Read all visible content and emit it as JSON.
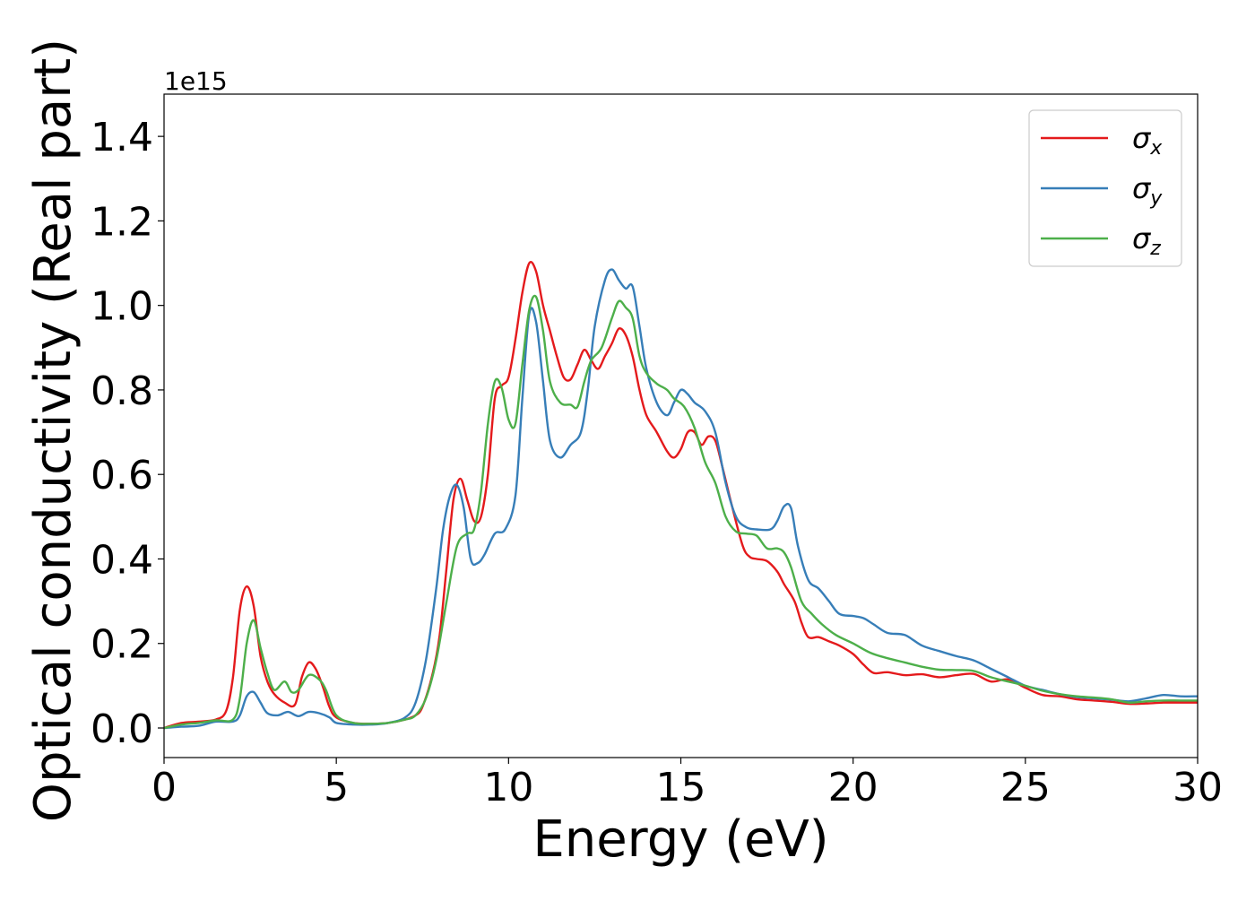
{
  "chart_data": {
    "type": "line",
    "xlabel": "Energy (eV)",
    "ylabel": "Optical conductivity (Real part)",
    "offset_text": "1e15",
    "xlim": [
      0,
      30
    ],
    "ylim": [
      -0.07,
      1.5
    ],
    "xticks": [
      0,
      5,
      10,
      15,
      20,
      25,
      30
    ],
    "yticks": [
      0.0,
      0.2,
      0.4,
      0.6,
      0.8,
      1.0,
      1.2,
      1.4
    ],
    "xtick_labels": [
      "0",
      "5",
      "10",
      "15",
      "20",
      "25",
      "30"
    ],
    "ytick_labels": [
      "0.0",
      "0.2",
      "0.4",
      "0.6",
      "0.8",
      "1.0",
      "1.2",
      "1.4"
    ],
    "grid": false,
    "legend_position": "top-right",
    "series": [
      {
        "name": "σx",
        "symbol": "σ",
        "subscript": "x",
        "color": "#e41a1c",
        "points": [
          [
            0,
            0.0
          ],
          [
            0.5,
            0.012
          ],
          [
            1.0,
            0.015
          ],
          [
            1.5,
            0.02
          ],
          [
            1.8,
            0.04
          ],
          [
            2.0,
            0.12
          ],
          [
            2.2,
            0.28
          ],
          [
            2.4,
            0.335
          ],
          [
            2.6,
            0.29
          ],
          [
            2.8,
            0.17
          ],
          [
            3.0,
            0.11
          ],
          [
            3.2,
            0.08
          ],
          [
            3.5,
            0.06
          ],
          [
            3.8,
            0.055
          ],
          [
            4.0,
            0.12
          ],
          [
            4.2,
            0.155
          ],
          [
            4.4,
            0.14
          ],
          [
            4.6,
            0.1
          ],
          [
            4.8,
            0.05
          ],
          [
            5.0,
            0.025
          ],
          [
            5.5,
            0.012
          ],
          [
            6.0,
            0.01
          ],
          [
            6.5,
            0.012
          ],
          [
            7.0,
            0.02
          ],
          [
            7.3,
            0.03
          ],
          [
            7.5,
            0.05
          ],
          [
            7.8,
            0.13
          ],
          [
            8.0,
            0.22
          ],
          [
            8.2,
            0.38
          ],
          [
            8.4,
            0.54
          ],
          [
            8.6,
            0.59
          ],
          [
            8.8,
            0.54
          ],
          [
            9.0,
            0.49
          ],
          [
            9.2,
            0.5
          ],
          [
            9.4,
            0.6
          ],
          [
            9.6,
            0.78
          ],
          [
            9.8,
            0.81
          ],
          [
            10.0,
            0.83
          ],
          [
            10.2,
            0.92
          ],
          [
            10.4,
            1.03
          ],
          [
            10.6,
            1.1
          ],
          [
            10.8,
            1.08
          ],
          [
            11.0,
            1.0
          ],
          [
            11.2,
            0.94
          ],
          [
            11.4,
            0.88
          ],
          [
            11.6,
            0.83
          ],
          [
            11.8,
            0.825
          ],
          [
            12.0,
            0.86
          ],
          [
            12.2,
            0.895
          ],
          [
            12.4,
            0.87
          ],
          [
            12.6,
            0.85
          ],
          [
            12.8,
            0.88
          ],
          [
            13.0,
            0.91
          ],
          [
            13.2,
            0.945
          ],
          [
            13.4,
            0.93
          ],
          [
            13.6,
            0.88
          ],
          [
            13.8,
            0.8
          ],
          [
            14.0,
            0.74
          ],
          [
            14.3,
            0.7
          ],
          [
            14.6,
            0.655
          ],
          [
            14.8,
            0.64
          ],
          [
            15.0,
            0.66
          ],
          [
            15.2,
            0.7
          ],
          [
            15.4,
            0.7
          ],
          [
            15.6,
            0.67
          ],
          [
            15.8,
            0.69
          ],
          [
            16.0,
            0.68
          ],
          [
            16.2,
            0.62
          ],
          [
            16.5,
            0.52
          ],
          [
            16.8,
            0.43
          ],
          [
            17.0,
            0.405
          ],
          [
            17.2,
            0.4
          ],
          [
            17.5,
            0.395
          ],
          [
            17.8,
            0.37
          ],
          [
            18.0,
            0.34
          ],
          [
            18.3,
            0.3
          ],
          [
            18.5,
            0.25
          ],
          [
            18.7,
            0.215
          ],
          [
            19.0,
            0.215
          ],
          [
            19.3,
            0.205
          ],
          [
            19.6,
            0.195
          ],
          [
            20.0,
            0.175
          ],
          [
            20.3,
            0.15
          ],
          [
            20.6,
            0.13
          ],
          [
            21.0,
            0.132
          ],
          [
            21.5,
            0.125
          ],
          [
            22.0,
            0.127
          ],
          [
            22.5,
            0.12
          ],
          [
            23.0,
            0.125
          ],
          [
            23.5,
            0.128
          ],
          [
            24.0,
            0.11
          ],
          [
            24.5,
            0.115
          ],
          [
            25.0,
            0.095
          ],
          [
            25.5,
            0.078
          ],
          [
            26.0,
            0.075
          ],
          [
            26.5,
            0.068
          ],
          [
            27.0,
            0.065
          ],
          [
            27.5,
            0.062
          ],
          [
            28.0,
            0.057
          ],
          [
            28.5,
            0.058
          ],
          [
            29.0,
            0.06
          ],
          [
            29.5,
            0.06
          ],
          [
            30.0,
            0.06
          ]
        ]
      },
      {
        "name": "σy",
        "symbol": "σ",
        "subscript": "y",
        "color": "#377eb8",
        "points": [
          [
            0,
            0.0
          ],
          [
            0.5,
            0.003
          ],
          [
            1.0,
            0.005
          ],
          [
            1.5,
            0.015
          ],
          [
            2.0,
            0.015
          ],
          [
            2.2,
            0.03
          ],
          [
            2.4,
            0.075
          ],
          [
            2.6,
            0.085
          ],
          [
            2.8,
            0.06
          ],
          [
            3.0,
            0.035
          ],
          [
            3.3,
            0.03
          ],
          [
            3.6,
            0.038
          ],
          [
            3.9,
            0.028
          ],
          [
            4.2,
            0.038
          ],
          [
            4.5,
            0.035
          ],
          [
            4.8,
            0.025
          ],
          [
            5.0,
            0.012
          ],
          [
            5.5,
            0.008
          ],
          [
            6.0,
            0.008
          ],
          [
            6.5,
            0.012
          ],
          [
            7.0,
            0.025
          ],
          [
            7.3,
            0.06
          ],
          [
            7.6,
            0.16
          ],
          [
            7.9,
            0.33
          ],
          [
            8.1,
            0.47
          ],
          [
            8.3,
            0.55
          ],
          [
            8.5,
            0.575
          ],
          [
            8.7,
            0.52
          ],
          [
            8.9,
            0.4
          ],
          [
            9.1,
            0.39
          ],
          [
            9.3,
            0.41
          ],
          [
            9.6,
            0.46
          ],
          [
            9.9,
            0.47
          ],
          [
            10.2,
            0.55
          ],
          [
            10.4,
            0.78
          ],
          [
            10.6,
            0.98
          ],
          [
            10.8,
            0.96
          ],
          [
            11.0,
            0.82
          ],
          [
            11.2,
            0.68
          ],
          [
            11.5,
            0.64
          ],
          [
            11.8,
            0.67
          ],
          [
            12.1,
            0.7
          ],
          [
            12.3,
            0.8
          ],
          [
            12.5,
            0.95
          ],
          [
            12.8,
            1.06
          ],
          [
            13.0,
            1.085
          ],
          [
            13.2,
            1.06
          ],
          [
            13.4,
            1.04
          ],
          [
            13.6,
            1.045
          ],
          [
            13.8,
            0.95
          ],
          [
            14.0,
            0.85
          ],
          [
            14.3,
            0.77
          ],
          [
            14.6,
            0.74
          ],
          [
            14.8,
            0.77
          ],
          [
            15.0,
            0.8
          ],
          [
            15.2,
            0.79
          ],
          [
            15.4,
            0.77
          ],
          [
            15.7,
            0.75
          ],
          [
            16.0,
            0.7
          ],
          [
            16.3,
            0.58
          ],
          [
            16.6,
            0.5
          ],
          [
            16.9,
            0.475
          ],
          [
            17.2,
            0.47
          ],
          [
            17.6,
            0.47
          ],
          [
            17.8,
            0.49
          ],
          [
            18.0,
            0.525
          ],
          [
            18.2,
            0.52
          ],
          [
            18.4,
            0.43
          ],
          [
            18.7,
            0.35
          ],
          [
            19.0,
            0.33
          ],
          [
            19.3,
            0.3
          ],
          [
            19.6,
            0.27
          ],
          [
            20.0,
            0.265
          ],
          [
            20.3,
            0.26
          ],
          [
            20.6,
            0.245
          ],
          [
            21.0,
            0.225
          ],
          [
            21.5,
            0.22
          ],
          [
            22.0,
            0.195
          ],
          [
            22.5,
            0.182
          ],
          [
            23.0,
            0.17
          ],
          [
            23.5,
            0.16
          ],
          [
            24.0,
            0.14
          ],
          [
            24.5,
            0.12
          ],
          [
            25.0,
            0.1
          ],
          [
            25.5,
            0.09
          ],
          [
            26.0,
            0.08
          ],
          [
            26.5,
            0.073
          ],
          [
            27.0,
            0.07
          ],
          [
            27.5,
            0.067
          ],
          [
            28.0,
            0.063
          ],
          [
            28.5,
            0.07
          ],
          [
            29.0,
            0.078
          ],
          [
            29.5,
            0.075
          ],
          [
            30.0,
            0.075
          ]
        ]
      },
      {
        "name": "σz",
        "symbol": "σ",
        "subscript": "z",
        "color": "#4daf4a",
        "points": [
          [
            0,
            0.0
          ],
          [
            0.5,
            0.008
          ],
          [
            1.0,
            0.012
          ],
          [
            1.5,
            0.018
          ],
          [
            2.0,
            0.02
          ],
          [
            2.2,
            0.07
          ],
          [
            2.4,
            0.2
          ],
          [
            2.6,
            0.255
          ],
          [
            2.8,
            0.19
          ],
          [
            3.0,
            0.13
          ],
          [
            3.2,
            0.09
          ],
          [
            3.5,
            0.11
          ],
          [
            3.7,
            0.085
          ],
          [
            3.9,
            0.09
          ],
          [
            4.2,
            0.125
          ],
          [
            4.5,
            0.115
          ],
          [
            4.7,
            0.09
          ],
          [
            5.0,
            0.03
          ],
          [
            5.5,
            0.012
          ],
          [
            6.0,
            0.01
          ],
          [
            6.5,
            0.012
          ],
          [
            7.0,
            0.02
          ],
          [
            7.3,
            0.03
          ],
          [
            7.6,
            0.07
          ],
          [
            7.9,
            0.16
          ],
          [
            8.2,
            0.3
          ],
          [
            8.5,
            0.43
          ],
          [
            8.8,
            0.46
          ],
          [
            9.0,
            0.47
          ],
          [
            9.2,
            0.56
          ],
          [
            9.4,
            0.72
          ],
          [
            9.6,
            0.82
          ],
          [
            9.8,
            0.805
          ],
          [
            10.0,
            0.73
          ],
          [
            10.2,
            0.72
          ],
          [
            10.4,
            0.86
          ],
          [
            10.6,
            0.99
          ],
          [
            10.8,
            1.02
          ],
          [
            11.0,
            0.94
          ],
          [
            11.2,
            0.82
          ],
          [
            11.5,
            0.77
          ],
          [
            11.8,
            0.765
          ],
          [
            12.0,
            0.76
          ],
          [
            12.2,
            0.82
          ],
          [
            12.4,
            0.87
          ],
          [
            12.7,
            0.9
          ],
          [
            13.0,
            0.97
          ],
          [
            13.2,
            1.01
          ],
          [
            13.4,
            0.995
          ],
          [
            13.6,
            0.97
          ],
          [
            13.8,
            0.88
          ],
          [
            14.0,
            0.84
          ],
          [
            14.3,
            0.815
          ],
          [
            14.6,
            0.8
          ],
          [
            14.8,
            0.78
          ],
          [
            15.1,
            0.76
          ],
          [
            15.4,
            0.71
          ],
          [
            15.7,
            0.63
          ],
          [
            16.0,
            0.58
          ],
          [
            16.3,
            0.5
          ],
          [
            16.6,
            0.465
          ],
          [
            16.9,
            0.46
          ],
          [
            17.2,
            0.455
          ],
          [
            17.5,
            0.425
          ],
          [
            17.8,
            0.425
          ],
          [
            18.0,
            0.415
          ],
          [
            18.2,
            0.38
          ],
          [
            18.5,
            0.3
          ],
          [
            18.8,
            0.27
          ],
          [
            19.1,
            0.245
          ],
          [
            19.5,
            0.22
          ],
          [
            20.0,
            0.2
          ],
          [
            20.5,
            0.178
          ],
          [
            21.0,
            0.165
          ],
          [
            21.5,
            0.155
          ],
          [
            22.0,
            0.145
          ],
          [
            22.5,
            0.138
          ],
          [
            23.0,
            0.137
          ],
          [
            23.5,
            0.135
          ],
          [
            24.0,
            0.12
          ],
          [
            24.5,
            0.11
          ],
          [
            25.0,
            0.1
          ],
          [
            25.5,
            0.088
          ],
          [
            26.0,
            0.08
          ],
          [
            26.5,
            0.075
          ],
          [
            27.0,
            0.072
          ],
          [
            27.5,
            0.068
          ],
          [
            28.0,
            0.06
          ],
          [
            28.5,
            0.063
          ],
          [
            29.0,
            0.065
          ],
          [
            29.5,
            0.065
          ],
          [
            30.0,
            0.065
          ]
        ]
      }
    ]
  }
}
